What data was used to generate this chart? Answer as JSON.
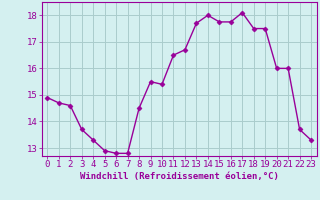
{
  "x": [
    0,
    1,
    2,
    3,
    4,
    5,
    6,
    7,
    8,
    9,
    10,
    11,
    12,
    13,
    14,
    15,
    16,
    17,
    18,
    19,
    20,
    21,
    22,
    23
  ],
  "y": [
    14.9,
    14.7,
    14.6,
    13.7,
    13.3,
    12.9,
    12.8,
    12.8,
    14.5,
    15.5,
    15.4,
    16.5,
    16.7,
    17.7,
    18.0,
    17.75,
    17.75,
    18.1,
    17.5,
    17.5,
    16.0,
    16.0,
    13.7,
    13.3
  ],
  "line_color": "#990099",
  "marker": "D",
  "marker_size": 2.5,
  "bg_color": "#d4f0f0",
  "grid_color": "#aacccc",
  "xlabel": "Windchill (Refroidissement éolien,°C)",
  "ylim": [
    12.7,
    18.5
  ],
  "xlim": [
    -0.5,
    23.5
  ],
  "yticks": [
    13,
    14,
    15,
    16,
    17,
    18
  ],
  "xticks": [
    0,
    1,
    2,
    3,
    4,
    5,
    6,
    7,
    8,
    9,
    10,
    11,
    12,
    13,
    14,
    15,
    16,
    17,
    18,
    19,
    20,
    21,
    22,
    23
  ],
  "axis_color": "#990099",
  "tick_color": "#990099",
  "xlabel_color": "#990099",
  "xlabel_fontsize": 6.5,
  "tick_fontsize": 6.5,
  "linewidth": 1.0
}
